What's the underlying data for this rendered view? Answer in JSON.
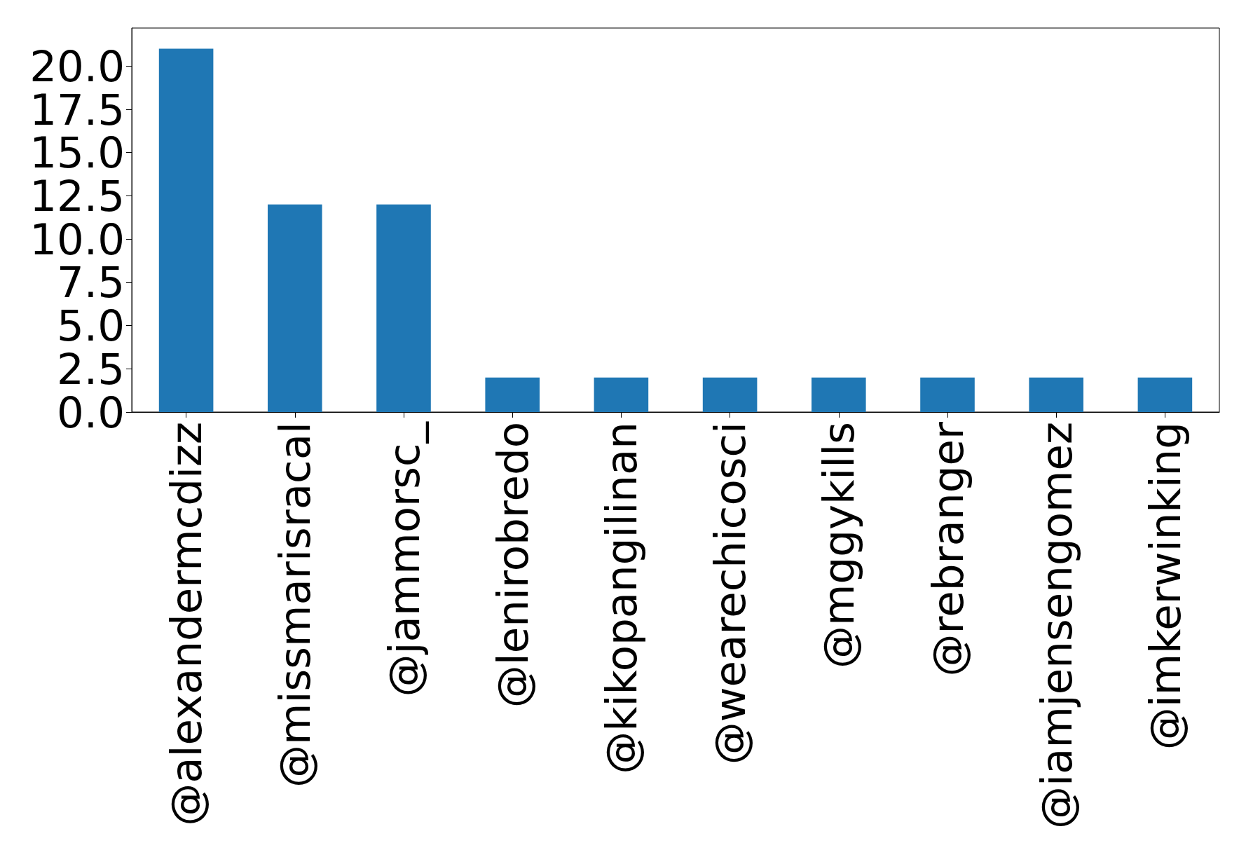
{
  "chart_data": {
    "type": "bar",
    "categories": [
      "@alexandermcdizz",
      "@missmarisracal",
      "@jammorsc_",
      "@lenirobredo",
      "@kikopangilinan",
      "@wearechicosci",
      "@mggykills",
      "@rebranger",
      "@iamjensengomez",
      "@imkerwinking"
    ],
    "values": [
      21,
      12,
      12,
      2,
      2,
      2,
      2,
      2,
      2,
      2
    ],
    "color": "#1f77b4",
    "ylim": [
      0,
      22.2
    ],
    "yticks": [
      {
        "value": 0,
        "label": "0.0"
      },
      {
        "value": 2.5,
        "label": "2.5"
      },
      {
        "value": 5,
        "label": "5.0"
      },
      {
        "value": 7.5,
        "label": "7.5"
      },
      {
        "value": 10,
        "label": "10.0"
      },
      {
        "value": 12.5,
        "label": "12.5"
      },
      {
        "value": 15,
        "label": "15.0"
      },
      {
        "value": 17.5,
        "label": "17.5"
      },
      {
        "value": 20,
        "label": "20.0"
      }
    ],
    "grid": false
  }
}
